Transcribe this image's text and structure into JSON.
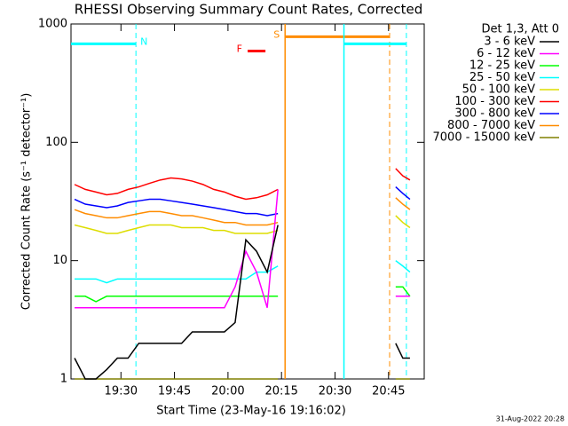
{
  "chart_data": {
    "type": "line",
    "title": "RHESSI Observing Summary Count Rates, Corrected",
    "xlabel": "Start Time (23-May-16 19:16:02)",
    "ylabel": "Corrected Count Rate (s⁻¹ detector⁻¹)",
    "footer": "31-Aug-2022 20:28",
    "legend_title": "Det 1,3, Att 0",
    "legend_position": "right",
    "log_y": true,
    "xlim": [
      1156,
      1255
    ],
    "ylim": [
      1,
      1000
    ],
    "xticks": [
      {
        "value": 1170,
        "label": "19:30"
      },
      {
        "value": 1185,
        "label": "19:45"
      },
      {
        "value": 1200,
        "label": "20:00"
      },
      {
        "value": 1215,
        "label": "20:15"
      },
      {
        "value": 1230,
        "label": "20:30"
      },
      {
        "value": 1245,
        "label": "20:45"
      }
    ],
    "yticks": [
      1,
      10,
      100,
      1000
    ],
    "x": [
      1157,
      1160,
      1163,
      1166,
      1169,
      1172,
      1175,
      1178,
      1181,
      1184,
      1187,
      1190,
      1193,
      1196,
      1199,
      1202,
      1205,
      1208,
      1211,
      1214,
      1230,
      1247,
      1249,
      1251
    ],
    "series": [
      {
        "name": "3 - 6 keV",
        "color": "#000000",
        "values": [
          1.5,
          1,
          1,
          1.2,
          1.5,
          1.5,
          2,
          2,
          2,
          2,
          2,
          2.5,
          2.5,
          2.5,
          2.5,
          3,
          15,
          12,
          8,
          20,
          null,
          2,
          1.5,
          1.5
        ]
      },
      {
        "name": "6 - 12 keV",
        "color": "#ff00ff",
        "values": [
          4,
          4,
          4,
          4,
          4,
          4,
          4,
          4,
          4,
          4,
          4,
          4,
          4,
          4,
          4,
          6,
          12,
          8,
          4,
          40,
          null,
          5,
          5,
          5
        ]
      },
      {
        "name": "12 - 25 keV",
        "color": "#00ff00",
        "values": [
          5,
          5,
          4.5,
          5,
          5,
          5,
          5,
          5,
          5,
          5,
          5,
          5,
          5,
          5,
          5,
          5,
          5,
          5,
          5,
          5,
          null,
          6,
          6,
          5
        ]
      },
      {
        "name": "25 - 50 keV",
        "color": "#00ffff",
        "values": [
          7,
          7,
          7,
          6.5,
          7,
          7,
          7,
          7,
          7,
          7,
          7,
          7,
          7,
          7,
          7,
          7,
          7,
          8,
          8,
          9,
          null,
          10,
          9,
          8
        ]
      },
      {
        "name": "50 - 100 keV",
        "color": "#dddd00",
        "values": [
          20,
          19,
          18,
          17,
          17,
          18,
          19,
          20,
          20,
          20,
          19,
          19,
          19,
          18,
          18,
          17,
          17,
          17,
          17,
          18,
          null,
          24,
          21,
          19
        ]
      },
      {
        "name": "100 - 300 keV",
        "color": "#ff0000",
        "values": [
          44,
          40,
          38,
          36,
          37,
          40,
          42,
          45,
          48,
          50,
          49,
          47,
          44,
          40,
          38,
          35,
          33,
          34,
          36,
          40,
          null,
          60,
          52,
          48
        ]
      },
      {
        "name": "300 - 800 keV",
        "color": "#0000ff",
        "values": [
          33,
          30,
          29,
          28,
          29,
          31,
          32,
          33,
          33,
          32,
          31,
          30,
          29,
          28,
          27,
          26,
          25,
          25,
          24,
          25,
          null,
          42,
          37,
          33
        ]
      },
      {
        "name": "800 - 7000 keV",
        "color": "#ff8c00",
        "values": [
          27,
          25,
          24,
          23,
          23,
          24,
          25,
          26,
          26,
          25,
          24,
          24,
          23,
          22,
          21,
          21,
          20,
          20,
          20,
          21,
          null,
          34,
          30,
          27
        ]
      },
      {
        "name": "7000 - 15000 keV",
        "color": "#808000",
        "values": [
          1,
          1,
          1,
          1,
          1,
          1,
          1,
          1,
          1,
          1,
          1,
          1,
          1,
          1,
          1,
          1,
          1,
          1,
          1,
          1,
          null,
          1,
          1,
          1
        ]
      }
    ],
    "flags": [
      {
        "label": "N",
        "color": "#00ffff",
        "start": 1156,
        "end": 1174.2,
        "level": 680,
        "label_side": "end",
        "verticals": true
      },
      {
        "label": "F",
        "color": "#ff0000",
        "start": 1205.5,
        "end": 1210.5,
        "level": 590,
        "label_side": "start",
        "verticals": false
      },
      {
        "label": "S",
        "color": "#ff8c00",
        "start": 1216,
        "end": 1245.3,
        "level": 780,
        "label_side": "start",
        "verticals": true
      },
      {
        "label": null,
        "color": "#00ffff",
        "start": 1232.5,
        "end": 1250,
        "level": 680,
        "label_side": "end",
        "verticals": true
      }
    ]
  }
}
